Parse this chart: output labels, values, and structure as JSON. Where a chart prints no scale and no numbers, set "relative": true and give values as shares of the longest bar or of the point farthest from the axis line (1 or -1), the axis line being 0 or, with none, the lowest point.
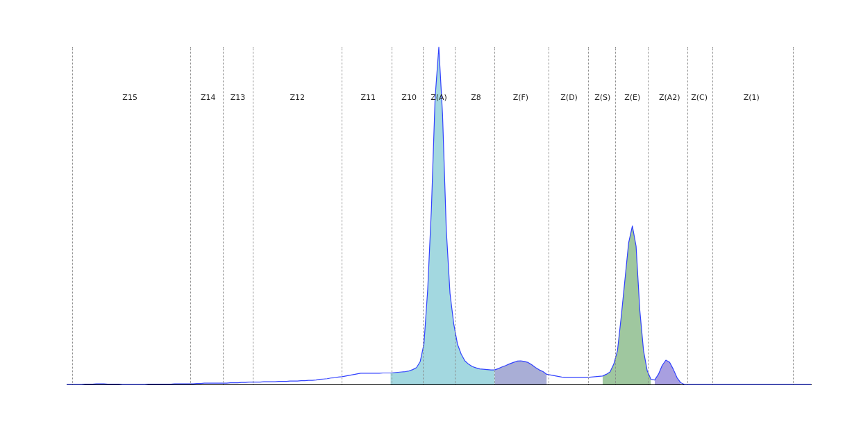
{
  "chart_data": {
    "type": "line",
    "relative": true,
    "legend": false,
    "marker": "none",
    "categories": [
      null,
      null,
      null,
      null,
      null,
      null,
      null,
      null,
      null,
      null,
      null,
      null,
      null,
      null,
      null,
      null,
      null,
      "Z15",
      null,
      null,
      null,
      null,
      null,
      null,
      null,
      null,
      null,
      null,
      null,
      null,
      null,
      null,
      null,
      null,
      null,
      null,
      null,
      null,
      "Z14",
      null,
      null,
      null,
      null,
      null,
      null,
      null,
      "Z13",
      null,
      null,
      null,
      null,
      null,
      null,
      null,
      null,
      null,
      null,
      null,
      null,
      null,
      null,
      null,
      "Z12",
      null,
      null,
      null,
      null,
      null,
      null,
      null,
      null,
      null,
      null,
      null,
      null,
      null,
      null,
      null,
      null,
      null,
      null,
      "Z11",
      null,
      null,
      null,
      null,
      null,
      null,
      null,
      null,
      null,
      null,
      "Z10",
      null,
      null,
      null,
      null,
      null,
      null,
      null,
      "Z(A)",
      null,
      null,
      null,
      null,
      null,
      null,
      null,
      null,
      null,
      "Z8",
      null,
      null,
      null,
      null,
      null,
      null,
      null,
      null,
      null,
      null,
      null,
      "Z(F)",
      null,
      null,
      null,
      null,
      null,
      null,
      null,
      null,
      null,
      null,
      null,
      null,
      "Z(D)",
      null,
      null,
      null,
      null,
      null,
      null,
      null,
      null,
      "Z(S)",
      null,
      null,
      null,
      null,
      null,
      null,
      null,
      "Z(E)",
      null,
      null,
      null,
      null,
      null,
      null,
      null,
      null,
      null,
      "Z(A2)",
      null,
      null,
      null,
      null,
      null,
      null,
      null,
      "Z(C)",
      null,
      null,
      null,
      null,
      null,
      null,
      null,
      null,
      null,
      null,
      null,
      null,
      null,
      "Z(1)",
      null,
      null,
      null,
      null,
      null,
      null,
      null,
      null,
      null,
      null,
      null,
      null,
      null,
      null,
      null,
      null
    ],
    "series": [
      {
        "type": "area",
        "color": "#a3d8e0",
        "values": [
          null,
          null,
          null,
          null,
          null,
          null,
          null,
          null,
          null,
          null,
          null,
          null,
          null,
          null,
          null,
          null,
          null,
          null,
          null,
          null,
          null,
          null,
          null,
          null,
          null,
          null,
          null,
          null,
          null,
          null,
          null,
          null,
          null,
          null,
          null,
          null,
          null,
          null,
          null,
          null,
          null,
          null,
          null,
          null,
          null,
          null,
          null,
          null,
          null,
          null,
          null,
          null,
          null,
          null,
          null,
          null,
          null,
          null,
          null,
          null,
          null,
          null,
          null,
          null,
          null,
          null,
          null,
          null,
          null,
          null,
          null,
          null,
          null,
          null,
          null,
          null,
          null,
          null,
          null,
          null,
          null,
          null,
          null,
          null,
          null,
          null,
          null,
          0.034,
          0.035,
          0.036,
          0.037,
          0.038,
          0.04,
          0.044,
          0.05,
          0.068,
          0.12,
          0.28,
          0.52,
          0.85,
          1,
          0.8,
          0.46,
          0.27,
          0.18,
          0.12,
          0.09,
          0.07,
          0.06,
          0.053,
          0.049,
          0.046,
          0.045,
          0.044,
          0.043,
          0.043,
          null,
          null,
          null,
          null,
          null,
          null,
          null,
          null,
          null,
          null,
          null,
          null,
          null,
          null,
          null,
          null,
          null,
          null,
          null,
          null,
          null,
          null,
          null,
          null,
          null,
          null,
          null,
          null,
          null,
          null,
          null,
          null,
          null,
          null,
          null,
          null,
          null,
          null,
          null,
          null,
          null,
          null,
          null,
          null,
          null,
          null,
          null,
          null,
          null,
          null,
          null,
          null,
          null,
          null,
          null,
          null,
          null,
          null,
          null,
          null,
          null,
          null,
          null,
          null,
          null,
          null,
          null,
          null,
          null,
          null,
          null,
          null,
          null,
          null,
          null,
          null,
          null,
          null,
          null,
          null,
          null,
          null,
          null,
          null,
          null
        ]
      },
      {
        "type": "area",
        "color": "#a9aed6",
        "values": [
          null,
          null,
          null,
          null,
          null,
          null,
          null,
          null,
          null,
          null,
          null,
          null,
          null,
          null,
          null,
          null,
          null,
          null,
          null,
          null,
          null,
          null,
          null,
          null,
          null,
          null,
          null,
          null,
          null,
          null,
          null,
          null,
          null,
          null,
          null,
          null,
          null,
          null,
          null,
          null,
          null,
          null,
          null,
          null,
          null,
          null,
          null,
          null,
          null,
          null,
          null,
          null,
          null,
          null,
          null,
          null,
          null,
          null,
          null,
          null,
          null,
          null,
          null,
          null,
          null,
          null,
          null,
          null,
          null,
          null,
          null,
          null,
          null,
          null,
          null,
          null,
          null,
          null,
          null,
          null,
          null,
          null,
          null,
          null,
          null,
          null,
          null,
          null,
          null,
          null,
          null,
          null,
          null,
          null,
          null,
          null,
          null,
          null,
          null,
          null,
          null,
          null,
          null,
          null,
          null,
          null,
          null,
          null,
          null,
          null,
          null,
          null,
          null,
          null,
          null,
          0.043,
          0.047,
          0.052,
          0.056,
          0.061,
          0.065,
          0.069,
          0.07,
          0.068,
          0.065,
          0.058,
          0.05,
          0.043,
          0.038,
          0.03,
          null,
          null,
          null,
          null,
          null,
          null,
          null,
          null,
          null,
          null,
          null,
          null,
          null,
          null,
          null,
          null,
          null,
          null,
          null,
          null,
          null,
          null,
          null,
          null,
          null,
          null,
          null,
          null,
          null,
          null,
          null,
          null,
          null,
          null,
          null,
          null,
          null,
          null,
          null,
          null,
          null,
          null,
          null,
          null,
          null,
          null,
          null,
          null,
          null,
          null,
          null,
          null,
          null,
          null,
          null,
          null,
          null,
          null,
          null,
          null,
          null,
          null,
          null,
          null,
          null,
          null,
          null,
          null,
          null,
          null,
          null
        ]
      },
      {
        "type": "area",
        "color": "#9fc79f",
        "values": [
          null,
          null,
          null,
          null,
          null,
          null,
          null,
          null,
          null,
          null,
          null,
          null,
          null,
          null,
          null,
          null,
          null,
          null,
          null,
          null,
          null,
          null,
          null,
          null,
          null,
          null,
          null,
          null,
          null,
          null,
          null,
          null,
          null,
          null,
          null,
          null,
          null,
          null,
          null,
          null,
          null,
          null,
          null,
          null,
          null,
          null,
          null,
          null,
          null,
          null,
          null,
          null,
          null,
          null,
          null,
          null,
          null,
          null,
          null,
          null,
          null,
          null,
          null,
          null,
          null,
          null,
          null,
          null,
          null,
          null,
          null,
          null,
          null,
          null,
          null,
          null,
          null,
          null,
          null,
          null,
          null,
          null,
          null,
          null,
          null,
          null,
          null,
          null,
          null,
          null,
          null,
          null,
          null,
          null,
          null,
          null,
          null,
          null,
          null,
          null,
          null,
          null,
          null,
          null,
          null,
          null,
          null,
          null,
          null,
          null,
          null,
          null,
          null,
          null,
          null,
          null,
          null,
          null,
          null,
          null,
          null,
          null,
          null,
          null,
          null,
          null,
          null,
          null,
          null,
          null,
          null,
          null,
          null,
          null,
          null,
          null,
          null,
          null,
          null,
          null,
          null,
          null,
          null,
          null,
          0.025,
          0.03,
          0.037,
          0.06,
          0.1,
          0.2,
          0.31,
          0.42,
          0.47,
          0.41,
          0.22,
          0.1,
          0.04,
          0.015,
          null,
          null,
          null,
          null,
          null,
          null,
          null,
          null,
          null,
          null,
          null,
          null,
          null,
          null,
          null,
          null,
          null,
          null,
          null,
          null,
          null,
          null,
          null,
          null,
          null,
          null,
          null,
          null,
          null,
          null,
          null,
          null,
          null,
          null,
          null,
          null,
          null,
          null,
          null,
          null,
          null,
          null,
          null
        ]
      },
      {
        "type": "area",
        "color": "#a89fe0",
        "values": [
          null,
          null,
          null,
          null,
          null,
          null,
          null,
          null,
          null,
          null,
          null,
          null,
          null,
          null,
          null,
          null,
          null,
          null,
          null,
          null,
          null,
          null,
          null,
          null,
          null,
          null,
          null,
          null,
          null,
          null,
          null,
          null,
          null,
          null,
          null,
          null,
          null,
          null,
          null,
          null,
          null,
          null,
          null,
          null,
          null,
          null,
          null,
          null,
          null,
          null,
          null,
          null,
          null,
          null,
          null,
          null,
          null,
          null,
          null,
          null,
          null,
          null,
          null,
          null,
          null,
          null,
          null,
          null,
          null,
          null,
          null,
          null,
          null,
          null,
          null,
          null,
          null,
          null,
          null,
          null,
          null,
          null,
          null,
          null,
          null,
          null,
          null,
          null,
          null,
          null,
          null,
          null,
          null,
          null,
          null,
          null,
          null,
          null,
          null,
          null,
          null,
          null,
          null,
          null,
          null,
          null,
          null,
          null,
          null,
          null,
          null,
          null,
          null,
          null,
          null,
          null,
          null,
          null,
          null,
          null,
          null,
          null,
          null,
          null,
          null,
          null,
          null,
          null,
          null,
          null,
          null,
          null,
          null,
          null,
          null,
          null,
          null,
          null,
          null,
          null,
          null,
          null,
          null,
          null,
          null,
          null,
          null,
          null,
          null,
          null,
          null,
          null,
          null,
          null,
          null,
          null,
          null,
          null,
          0.013,
          0.03,
          0.056,
          0.072,
          0.066,
          0.045,
          0.02,
          0.005,
          null,
          null,
          null,
          null,
          null,
          null,
          null,
          null,
          null,
          null,
          null,
          null,
          null,
          null,
          null,
          null,
          null,
          null,
          null,
          null,
          null,
          null,
          null,
          null,
          null,
          null,
          null,
          null,
          null,
          null,
          null,
          null,
          null,
          null,
          null
        ]
      },
      {
        "color": "#3040ff",
        "values": [
          0,
          0,
          0,
          0,
          0,
          0.001,
          0.001,
          0.001,
          0.002,
          0.002,
          0.002,
          0.001,
          0.001,
          0.001,
          0.001,
          0,
          0,
          0,
          0,
          0,
          0,
          0,
          0.001,
          0.001,
          0.001,
          0.001,
          0.001,
          0.001,
          0.001,
          0.002,
          0.002,
          0.002,
          0.002,
          0.002,
          0.002,
          0.003,
          0.003,
          0.004,
          0.004,
          0.004,
          0.004,
          0.004,
          0.004,
          0.004,
          0.005,
          0.005,
          0.005,
          0.006,
          0.006,
          0.007,
          0.007,
          0.007,
          0.007,
          0.008,
          0.008,
          0.008,
          0.008,
          0.009,
          0.009,
          0.009,
          0.01,
          0.01,
          0.01,
          0.011,
          0.011,
          0.012,
          0.012,
          0.013,
          0.015,
          0.016,
          0.017,
          0.019,
          0.02,
          0.022,
          0.023,
          0.025,
          0.027,
          0.029,
          0.031,
          0.033,
          0.033,
          0.033,
          0.033,
          0.033,
          0.033,
          0.034,
          0.034,
          0.034,
          0.035,
          0.036,
          0.037,
          0.038,
          0.04,
          0.044,
          0.05,
          0.068,
          0.12,
          0.28,
          0.52,
          0.85,
          1,
          0.8,
          0.46,
          0.27,
          0.18,
          0.12,
          0.09,
          0.07,
          0.06,
          0.053,
          0.049,
          0.046,
          0.045,
          0.044,
          0.043,
          0.043,
          0.047,
          0.052,
          0.056,
          0.061,
          0.065,
          0.069,
          0.07,
          0.068,
          0.065,
          0.058,
          0.05,
          0.043,
          0.038,
          0.03,
          0.028,
          0.026,
          0.024,
          0.022,
          0.021,
          0.021,
          0.021,
          0.021,
          0.021,
          0.021,
          0.021,
          0.022,
          0.023,
          0.024,
          0.025,
          0.03,
          0.037,
          0.06,
          0.1,
          0.2,
          0.31,
          0.42,
          0.47,
          0.41,
          0.22,
          0.1,
          0.04,
          0.015,
          0.013,
          0.03,
          0.056,
          0.072,
          0.066,
          0.045,
          0.02,
          0.005,
          0,
          0,
          0,
          0,
          0,
          0,
          0,
          0,
          0,
          0,
          0,
          0,
          0,
          0,
          0,
          0,
          0,
          0,
          0,
          0,
          0,
          0,
          0,
          0,
          0,
          0,
          0,
          0,
          0,
          0,
          0,
          0,
          0,
          0,
          0
        ]
      }
    ]
  }
}
